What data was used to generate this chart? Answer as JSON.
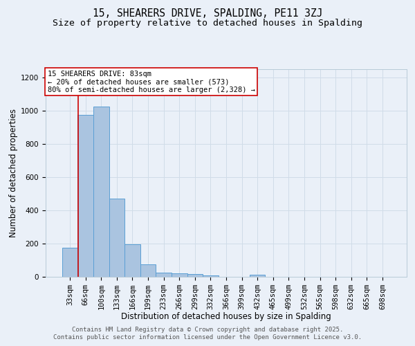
{
  "title_line1": "15, SHEARERS DRIVE, SPALDING, PE11 3ZJ",
  "title_line2": "Size of property relative to detached houses in Spalding",
  "xlabel": "Distribution of detached houses by size in Spalding",
  "ylabel": "Number of detached properties",
  "bar_labels": [
    "33sqm",
    "66sqm",
    "100sqm",
    "133sqm",
    "166sqm",
    "199sqm",
    "233sqm",
    "266sqm",
    "299sqm",
    "332sqm",
    "366sqm",
    "399sqm",
    "432sqm",
    "465sqm",
    "499sqm",
    "532sqm",
    "565sqm",
    "598sqm",
    "632sqm",
    "665sqm",
    "698sqm"
  ],
  "bar_values": [
    175,
    975,
    1025,
    470,
    195,
    75,
    27,
    20,
    15,
    8,
    0,
    0,
    12,
    0,
    0,
    0,
    0,
    0,
    0,
    0,
    0
  ],
  "bar_color": "#aac4e0",
  "bar_edge_color": "#5a9fd4",
  "grid_color": "#d0dce8",
  "background_color": "#eaf0f8",
  "property_line_color": "#cc0000",
  "annotation_text": "15 SHEARERS DRIVE: 83sqm\n← 20% of detached houses are smaller (573)\n80% of semi-detached houses are larger (2,328) →",
  "annotation_box_color": "#ffffff",
  "annotation_box_edge": "#cc0000",
  "ylim": [
    0,
    1250
  ],
  "yticks": [
    0,
    200,
    400,
    600,
    800,
    1000,
    1200
  ],
  "footer_line1": "Contains HM Land Registry data © Crown copyright and database right 2025.",
  "footer_line2": "Contains public sector information licensed under the Open Government Licence v3.0.",
  "title_fontsize": 10.5,
  "subtitle_fontsize": 9.5,
  "axis_label_fontsize": 8.5,
  "tick_fontsize": 7.5,
  "annotation_fontsize": 7.5,
  "footer_fontsize": 6.5
}
